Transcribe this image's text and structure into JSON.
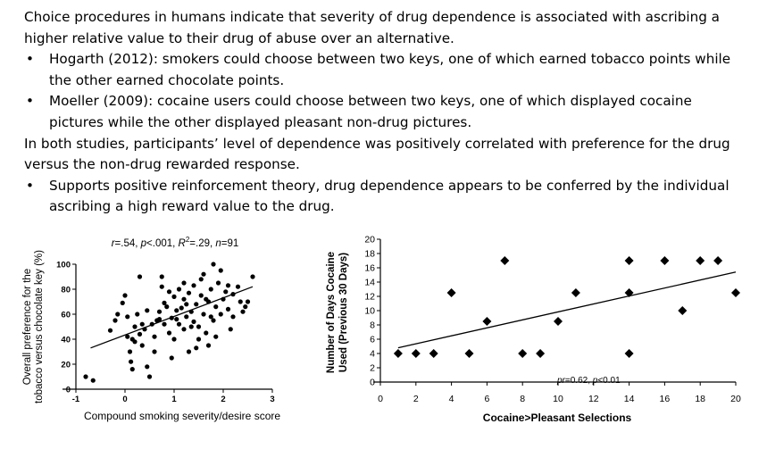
{
  "text": {
    "p1": "Choice procedures in humans indicate that severity of drug dependence is associated with ascribing a higher relative value to their drug of abuse over an alternative.",
    "b1": "Hogarth (2012): smokers could choose between two keys, one of which earned tobacco points while the other earned chocolate points.",
    "b2": "Moeller (2009): cocaine users could choose between two keys, one of which displayed cocaine pictures while the other displayed pleasant non-drug pictures.",
    "p2": "In both studies, participants’ level of dependence was positively correlated with preference for the drug versus the non-drug rewarded response.",
    "b3": "Supports positive reinforcement theory, drug dependence appears to be conferred by the individual ascribing a high reward value to the drug.",
    "bullet_symbol": "•"
  },
  "chart_data": [
    {
      "type": "scatter",
      "title": "r=.54, p<.001, R²=.29, n=91",
      "title_parts": {
        "r": "r",
        "a": "=.54, ",
        "p": "p",
        "b": "<.001, ",
        "R": "R",
        "sup": "2",
        "c": "=.29, ",
        "n": "n",
        "d": "=91"
      },
      "xlabel": "Compound smoking severity/desire score",
      "ylabel_line1": "Overall preference for the",
      "ylabel_line2": "tobacco versus chocolate key (%)",
      "xlim": [
        -1,
        3
      ],
      "ylim": [
        0,
        100
      ],
      "xticks": [
        "-1",
        "0",
        "1",
        "2",
        "3"
      ],
      "yticks": [
        "0",
        "20",
        "40",
        "60",
        "80",
        "100"
      ],
      "trendline": {
        "x": [
          -0.7,
          2.6
        ],
        "y": [
          33,
          82
        ]
      },
      "points": [
        [
          -0.8,
          10
        ],
        [
          -0.65,
          7
        ],
        [
          -0.3,
          47
        ],
        [
          -0.2,
          55
        ],
        [
          -0.15,
          60
        ],
        [
          -0.05,
          69
        ],
        [
          0.0,
          75
        ],
        [
          0.05,
          58
        ],
        [
          0.05,
          42
        ],
        [
          0.1,
          30
        ],
        [
          0.12,
          22
        ],
        [
          0.15,
          16
        ],
        [
          0.15,
          40
        ],
        [
          0.2,
          50
        ],
        [
          0.25,
          60
        ],
        [
          0.3,
          90
        ],
        [
          0.3,
          44
        ],
        [
          0.35,
          35
        ],
        [
          0.4,
          48
        ],
        [
          0.45,
          63
        ],
        [
          0.45,
          18
        ],
        [
          0.5,
          10
        ],
        [
          0.55,
          52
        ],
        [
          0.6,
          42
        ],
        [
          0.65,
          55
        ],
        [
          0.7,
          62
        ],
        [
          0.75,
          82
        ],
        [
          0.75,
          90
        ],
        [
          0.8,
          52
        ],
        [
          0.85,
          66
        ],
        [
          0.9,
          78
        ],
        [
          0.9,
          45
        ],
        [
          0.95,
          57
        ],
        [
          1.0,
          74
        ],
        [
          1.0,
          40
        ],
        [
          1.05,
          63
        ],
        [
          1.1,
          52
        ],
        [
          1.1,
          80
        ],
        [
          1.15,
          65
        ],
        [
          1.2,
          48
        ],
        [
          1.2,
          72
        ],
        [
          1.25,
          58
        ],
        [
          1.3,
          30
        ],
        [
          1.3,
          77
        ],
        [
          1.35,
          62
        ],
        [
          1.4,
          54
        ],
        [
          1.4,
          83
        ],
        [
          1.45,
          68
        ],
        [
          1.5,
          40
        ],
        [
          1.5,
          50
        ],
        [
          1.55,
          75
        ],
        [
          1.6,
          60
        ],
        [
          1.6,
          92
        ],
        [
          1.65,
          45
        ],
        [
          1.7,
          70
        ],
        [
          1.7,
          35
        ],
        [
          1.75,
          80
        ],
        [
          1.8,
          55
        ],
        [
          1.8,
          100
        ],
        [
          1.85,
          66
        ],
        [
          1.9,
          85
        ],
        [
          1.95,
          60
        ],
        [
          2.0,
          72
        ],
        [
          2.05,
          78
        ],
        [
          2.1,
          64
        ],
        [
          2.15,
          48
        ],
        [
          2.2,
          76
        ],
        [
          2.3,
          82
        ],
        [
          2.4,
          62
        ],
        [
          2.5,
          70
        ],
        [
          2.6,
          90
        ],
        [
          0.6,
          30
        ],
        [
          0.95,
          25
        ],
        [
          1.2,
          85
        ],
        [
          1.45,
          33
        ],
        [
          1.55,
          88
        ],
        [
          1.75,
          58
        ],
        [
          1.95,
          95
        ],
        [
          2.1,
          83
        ],
        [
          2.35,
          70
        ],
        [
          0.35,
          52
        ],
        [
          0.8,
          69
        ],
        [
          1.05,
          56
        ],
        [
          1.25,
          68
        ],
        [
          1.65,
          72
        ],
        [
          2.2,
          58
        ],
        [
          0.2,
          38
        ],
        [
          0.7,
          56
        ],
        [
          1.35,
          50
        ],
        [
          1.85,
          42
        ],
        [
          2.45,
          66
        ]
      ]
    },
    {
      "type": "scatter",
      "xlabel": "Cocaine>Pleasant Selections",
      "ylabel_line1": "Number of Days Cocaine",
      "ylabel_line2": "Used (Previous 30 Days)",
      "annotation_parts": {
        "pr": "pr",
        "a": "=0.62, ",
        "p": "p",
        "b": "<0.01"
      },
      "xlim": [
        0,
        20
      ],
      "ylim": [
        0,
        20
      ],
      "xticks": [
        "0",
        "2",
        "4",
        "6",
        "8",
        "10",
        "12",
        "14",
        "16",
        "18",
        "20"
      ],
      "yticks": [
        "0",
        "2",
        "4",
        "6",
        "8",
        "10",
        "12",
        "14",
        "16",
        "18",
        "20"
      ],
      "trendline": {
        "x": [
          1,
          20
        ],
        "y": [
          4.8,
          15.4
        ]
      },
      "points": [
        [
          1,
          4
        ],
        [
          2,
          4
        ],
        [
          3,
          4
        ],
        [
          4,
          12.5
        ],
        [
          5,
          4
        ],
        [
          6,
          8.5
        ],
        [
          7,
          17
        ],
        [
          8,
          4
        ],
        [
          9,
          4
        ],
        [
          10,
          8.5
        ],
        [
          11,
          12.5
        ],
        [
          14,
          17
        ],
        [
          14,
          12.5
        ],
        [
          14,
          4
        ],
        [
          16,
          17
        ],
        [
          17,
          10
        ],
        [
          18,
          17
        ],
        [
          19,
          17
        ],
        [
          20,
          12.5
        ]
      ]
    }
  ]
}
